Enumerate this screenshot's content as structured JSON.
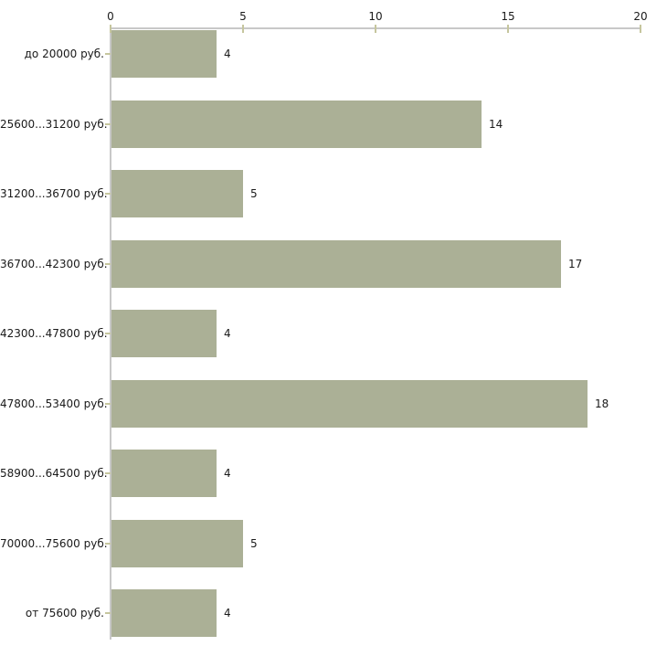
{
  "chart_data": {
    "type": "bar",
    "orientation": "horizontal",
    "title": "",
    "xlabel": "",
    "ylabel": "",
    "categories": [
      "до 20000 руб.",
      "25600...31200 руб.",
      "31200...36700 руб.",
      "36700...42300 руб.",
      "42300...47800 руб.",
      "47800...53400 руб.",
      "58900...64500 руб.",
      "70000...75600 руб.",
      "от 75600 руб."
    ],
    "values": [
      4,
      14,
      5,
      17,
      4,
      18,
      4,
      5,
      4
    ],
    "value_labels": [
      "4",
      "14",
      "5",
      "17",
      "4",
      "18",
      "4",
      "5",
      "4"
    ],
    "xlim": [
      0,
      20
    ],
    "x_ticks": [
      0,
      5,
      10,
      15,
      20
    ],
    "x_tick_labels": [
      "0",
      "5",
      "10",
      "15",
      "20"
    ],
    "grid": false,
    "legend": "none",
    "colors": {
      "bar_fill": "#abb096",
      "axis_line": "#c8c8c8",
      "tick_mark": "#c6c69e",
      "text": "#1a1a1a",
      "background": "#ffffff"
    }
  }
}
